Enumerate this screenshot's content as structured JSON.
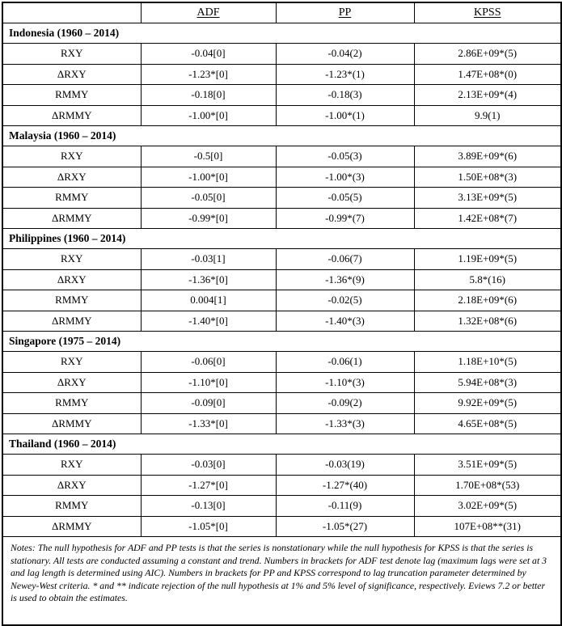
{
  "table": {
    "columns": [
      "",
      "ADF",
      "PP",
      "KPSS"
    ],
    "sections": [
      {
        "title": "Indonesia (1960 – 2014)",
        "rows": [
          {
            "label": "RXY",
            "adf": "-0.04[0]",
            "pp": "-0.04(2)",
            "kpss": "2.86E+09*(5)"
          },
          {
            "label": "ΔRXY",
            "adf": "-1.23*[0]",
            "pp": "-1.23*(1)",
            "kpss": "1.47E+08*(0)"
          },
          {
            "label": "RMMY",
            "adf": "-0.18[0]",
            "pp": "-0.18(3)",
            "kpss": "2.13E+09*(4)"
          },
          {
            "label": "ΔRMMY",
            "adf": "-1.00*[0]",
            "pp": "-1.00*(1)",
            "kpss": "9.9(1)"
          }
        ]
      },
      {
        "title": "Malaysia (1960 – 2014)",
        "rows": [
          {
            "label": "RXY",
            "adf": "-0.5[0]",
            "pp": "-0.05(3)",
            "kpss": "3.89E+09*(6)"
          },
          {
            "label": "ΔRXY",
            "adf": "-1.00*[0]",
            "pp": "-1.00*(3)",
            "kpss": "1.50E+08*(3)"
          },
          {
            "label": "RMMY",
            "adf": "-0.05[0]",
            "pp": "-0.05(5)",
            "kpss": "3.13E+09*(5)"
          },
          {
            "label": "ΔRMMY",
            "adf": "-0.99*[0]",
            "pp": "-0.99*(7)",
            "kpss": "1.42E+08*(7)"
          }
        ]
      },
      {
        "title": "Philippines (1960 – 2014)",
        "rows": [
          {
            "label": "RXY",
            "adf": "-0.03[1]",
            "pp": "-0.06(7)",
            "kpss": "1.19E+09*(5)"
          },
          {
            "label": "ΔRXY",
            "adf": "-1.36*[0]",
            "pp": "-1.36*(9)",
            "kpss": "5.8*(16)"
          },
          {
            "label": "RMMY",
            "adf": "0.004[1]",
            "pp": "-0.02(5)",
            "kpss": "2.18E+09*(6)"
          },
          {
            "label": "ΔRMMY",
            "adf": "-1.40*[0]",
            "pp": "-1.40*(3)",
            "kpss": "1.32E+08*(6)"
          }
        ]
      },
      {
        "title": "Singapore (1975 – 2014)",
        "rows": [
          {
            "label": "RXY",
            "adf": "-0.06[0]",
            "pp": "-0.06(1)",
            "kpss": "1.18E+10*(5)"
          },
          {
            "label": "ΔRXY",
            "adf": "-1.10*[0]",
            "pp": "-1.10*(3)",
            "kpss": "5.94E+08*(3)"
          },
          {
            "label": "RMMY",
            "adf": "-0.09[0]",
            "pp": "-0.09(2)",
            "kpss": "9.92E+09*(5)"
          },
          {
            "label": "ΔRMMY",
            "adf": "-1.33*[0]",
            "pp": "-1.33*(3)",
            "kpss": "4.65E+08*(5)"
          }
        ]
      },
      {
        "title": "Thailand (1960 – 2014)",
        "rows": [
          {
            "label": "RXY",
            "adf": "-0.03[0]",
            "pp": "-0.03(19)",
            "kpss": "3.51E+09*(5)"
          },
          {
            "label": "ΔRXY",
            "adf": "-1.27*[0]",
            "pp": "-1.27*(40)",
            "kpss": "1.70E+08*(53)"
          },
          {
            "label": "RMMY",
            "adf": "-0.13[0]",
            "pp": "-0.11(9)",
            "kpss": "3.02E+09*(5)"
          },
          {
            "label": "ΔRMMY",
            "adf": "-1.05*[0]",
            "pp": "-1.05*(27)",
            "kpss": "107E+08**(31)"
          }
        ]
      }
    ],
    "notes": "Notes: The null hypothesis for ADF and PP tests is that the series is nonstationary while the null hypothesis for KPSS is that the series is stationary. All tests are conducted assuming a constant and trend. Numbers in brackets for ADF test denote lag (maximum lags were set at 3 and lag length is determined using AIC). Numbers in brackets for PP and KPSS correspond to lag truncation parameter determined by Newey-West criteria. * and ** indicate rejection of the null hypothesis at 1% and 5% level of significance, respectively. Eviews 7.2 or better is used to obtain the estimates."
  },
  "colors": {
    "border": "#000000",
    "text": "#000000",
    "background": "#ffffff"
  }
}
